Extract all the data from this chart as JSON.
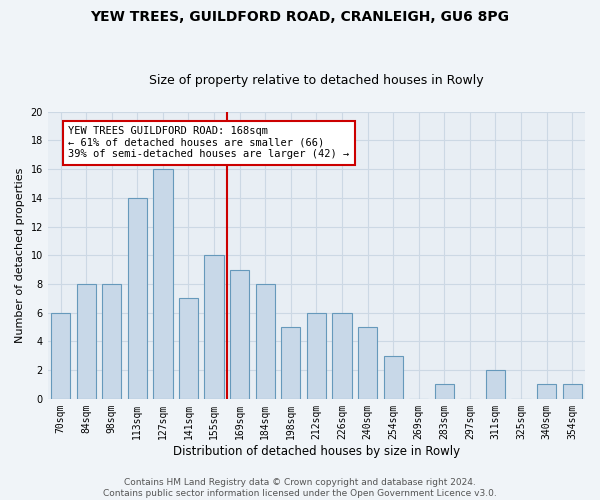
{
  "title1": "YEW TREES, GUILDFORD ROAD, CRANLEIGH, GU6 8PG",
  "title2": "Size of property relative to detached houses in Rowly",
  "xlabel": "Distribution of detached houses by size in Rowly",
  "ylabel": "Number of detached properties",
  "categories": [
    "70sqm",
    "84sqm",
    "98sqm",
    "113sqm",
    "127sqm",
    "141sqm",
    "155sqm",
    "169sqm",
    "184sqm",
    "198sqm",
    "212sqm",
    "226sqm",
    "240sqm",
    "254sqm",
    "269sqm",
    "283sqm",
    "297sqm",
    "311sqm",
    "325sqm",
    "340sqm",
    "354sqm"
  ],
  "values": [
    6,
    8,
    8,
    14,
    16,
    7,
    10,
    9,
    8,
    5,
    6,
    6,
    5,
    3,
    0,
    1,
    0,
    2,
    0,
    1,
    1
  ],
  "bar_color": "#c8d8e8",
  "bar_edge_color": "#6699bb",
  "bar_width": 0.75,
  "ylim": [
    0,
    20
  ],
  "yticks": [
    0,
    2,
    4,
    6,
    8,
    10,
    12,
    14,
    16,
    18,
    20
  ],
  "vline_color": "#cc0000",
  "vline_x_index": 7,
  "annotation_title": "YEW TREES GUILDFORD ROAD: 168sqm",
  "annotation_line1": "← 61% of detached houses are smaller (66)",
  "annotation_line2": "39% of semi-detached houses are larger (42) →",
  "annotation_box_color": "#ffffff",
  "annotation_box_edge_color": "#cc0000",
  "footer1": "Contains HM Land Registry data © Crown copyright and database right 2024.",
  "footer2": "Contains public sector information licensed under the Open Government Licence v3.0.",
  "fig_facecolor": "#f0f4f8",
  "ax_facecolor": "#e8eef4",
  "grid_color": "#ccd8e4",
  "title1_fontsize": 10,
  "title2_fontsize": 9,
  "xlabel_fontsize": 8.5,
  "ylabel_fontsize": 8,
  "tick_fontsize": 7,
  "footer_fontsize": 6.5,
  "ann_fontsize": 7.5
}
